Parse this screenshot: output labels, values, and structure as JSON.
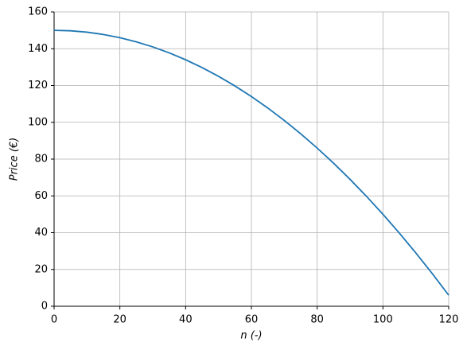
{
  "chart_data": {
    "type": "line",
    "xlabel": "n (-)",
    "ylabel": "Price (€)",
    "x": [
      0,
      5,
      10,
      15,
      20,
      25,
      30,
      35,
      40,
      45,
      50,
      55,
      60,
      65,
      70,
      75,
      80,
      85,
      90,
      95,
      100,
      105,
      110,
      115,
      120
    ],
    "series": [
      {
        "color": "#1f77b4",
        "values": [
          150,
          149.75,
          149,
          147.75,
          146,
          143.75,
          141,
          137.75,
          134,
          129.75,
          125,
          119.75,
          114,
          107.75,
          101,
          93.75,
          86,
          77.75,
          69,
          59.75,
          50,
          39.75,
          29,
          17.75,
          6
        ]
      }
    ],
    "xlim": [
      0,
      120
    ],
    "xticks": [
      0,
      20,
      40,
      60,
      80,
      100,
      120
    ],
    "ylim": [
      0,
      160
    ],
    "yticks": [
      0,
      20,
      40,
      60,
      80,
      100,
      120,
      140,
      160
    ],
    "grid": true
  }
}
